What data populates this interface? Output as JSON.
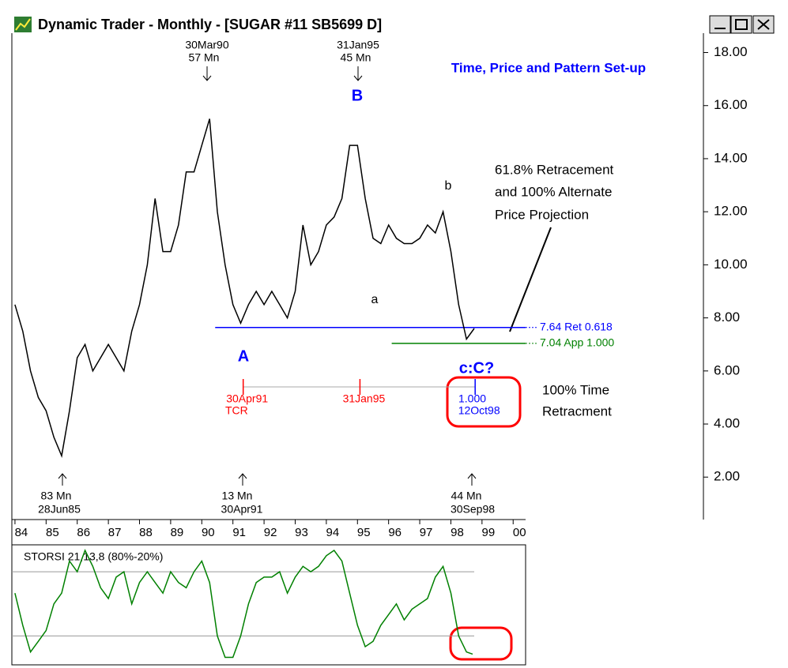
{
  "window": {
    "title": "Dynamic Trader - Monthly - [SUGAR #11        SB5699 D]"
  },
  "chart_data": [
    {
      "type": "line",
      "title": "Time, Price and Pattern Set-up",
      "color": "#000000",
      "x": [
        84.0,
        84.25,
        84.5,
        84.75,
        85.0,
        85.25,
        85.5,
        85.75,
        86.0,
        86.25,
        86.5,
        86.75,
        87.0,
        87.25,
        87.5,
        87.75,
        88.0,
        88.25,
        88.5,
        88.75,
        89.0,
        89.25,
        89.5,
        89.75,
        90.0,
        90.25,
        90.5,
        90.75,
        91.0,
        91.25,
        91.5,
        91.75,
        92.0,
        92.25,
        92.5,
        92.75,
        93.0,
        93.25,
        93.5,
        93.75,
        94.0,
        94.25,
        94.5,
        94.75,
        95.0,
        95.25,
        95.5,
        95.75,
        96.0,
        96.25,
        96.5,
        96.75,
        97.0,
        97.25,
        97.5,
        97.75,
        98.0,
        98.25,
        98.5,
        98.75
      ],
      "values": [
        8.5,
        7.5,
        6,
        5,
        4.5,
        3.5,
        2.8,
        4.5,
        6.5,
        7,
        6,
        6.5,
        7,
        6.5,
        6,
        7.5,
        8.5,
        10,
        12.5,
        10.5,
        10.5,
        11.5,
        13.5,
        13.5,
        14.5,
        15.5,
        12,
        10,
        8.5,
        7.8,
        8.5,
        9,
        8.5,
        9,
        8.5,
        8,
        9,
        11.5,
        10,
        10.5,
        11.5,
        11.8,
        12.5,
        14.5,
        14.5,
        12.5,
        11,
        10.8,
        11.5,
        11,
        10.8,
        10.8,
        11,
        11.5,
        11.2,
        12,
        10.5,
        8.5,
        7.2,
        7.6
      ],
      "xlim": [
        83.9,
        100.4
      ],
      "xticks": [
        84,
        85,
        86,
        87,
        88,
        89,
        90,
        91,
        92,
        93,
        94,
        95,
        96,
        97,
        98,
        99,
        {
          "value": 100,
          "label": "00"
        }
      ],
      "ylim": [
        0.4,
        18.7
      ],
      "yticks": [
        {
          "value": 2,
          "label": "2.00"
        },
        {
          "value": 4,
          "label": "4.00"
        },
        {
          "value": 6,
          "label": "6.00"
        },
        {
          "value": 8,
          "label": "8.00"
        },
        {
          "value": 10,
          "label": "10.00"
        },
        {
          "value": 12,
          "label": "12.00"
        },
        {
          "value": 14,
          "label": "14.00"
        },
        {
          "value": 16,
          "label": "16.00"
        },
        {
          "value": 18,
          "label": "18.00"
        }
      ],
      "levels": [
        {
          "value": 7.64,
          "start": 90.43,
          "label": "7.64 Ret 0.618",
          "color": "#0000ff"
        },
        {
          "value": 7.04,
          "start": 96.1,
          "label": "7.04 App 1.000",
          "color": "#008000"
        }
      ],
      "time_markers": [
        {
          "x": 91.33,
          "label": "30Apr91",
          "color": "#ff0000"
        },
        {
          "x": 95.08,
          "label": "31Jan95",
          "color": "#ff0000"
        },
        {
          "x": 98.78,
          "label": "12Oct98",
          "color": "#0000ff"
        }
      ],
      "annotations": {
        "top1": [
          "30Mar90",
          "57 Mn"
        ],
        "top2": [
          "31Jan95",
          "45 Mn"
        ],
        "B": "B",
        "A": "A",
        "cC": "c:C?",
        "a": "a",
        "b": "b",
        "note1": [
          "61.8% Retracement",
          "and 100% Alternate",
          "Price Projection"
        ],
        "note2": [
          "100% Time",
          "Retracment"
        ],
        "tcr": "TCR",
        "ratio": "1.000",
        "bot1": [
          "83 Mn",
          "28Jun85"
        ],
        "bot2": [
          "13 Mn",
          "30Apr91"
        ],
        "bot3": [
          "44 Mn",
          "30Sep98"
        ]
      }
    },
    {
      "type": "line",
      "title": "STORSI 21,13,8 (80%-20%)",
      "color": "#008000",
      "x": [
        84.0,
        84.25,
        84.5,
        84.75,
        85.0,
        85.25,
        85.5,
        85.75,
        86.0,
        86.25,
        86.5,
        86.75,
        87.0,
        87.25,
        87.5,
        87.75,
        88.0,
        88.25,
        88.5,
        88.75,
        89.0,
        89.25,
        89.5,
        89.75,
        90.0,
        90.25,
        90.5,
        90.75,
        91.0,
        91.25,
        91.5,
        91.75,
        92.0,
        92.25,
        92.5,
        92.75,
        93.0,
        93.25,
        93.5,
        93.75,
        94.0,
        94.25,
        94.5,
        94.75,
        95.0,
        95.25,
        95.5,
        95.75,
        96.0,
        96.25,
        96.5,
        96.75,
        97.0,
        97.25,
        97.5,
        97.75,
        98.0,
        98.25,
        98.5,
        98.7
      ],
      "values": [
        60,
        30,
        5,
        15,
        25,
        50,
        60,
        90,
        80,
        100,
        85,
        65,
        55,
        75,
        80,
        50,
        70,
        80,
        70,
        60,
        80,
        70,
        65,
        80,
        90,
        70,
        20,
        0,
        0,
        20,
        50,
        70,
        75,
        75,
        80,
        60,
        75,
        85,
        80,
        85,
        95,
        100,
        90,
        60,
        30,
        10,
        15,
        30,
        40,
        50,
        35,
        45,
        50,
        55,
        75,
        85,
        60,
        20,
        5,
        3
      ],
      "xlim": [
        83.9,
        100.4
      ],
      "ylim": [
        -7,
        100
      ],
      "levels": [
        80,
        20
      ]
    }
  ]
}
